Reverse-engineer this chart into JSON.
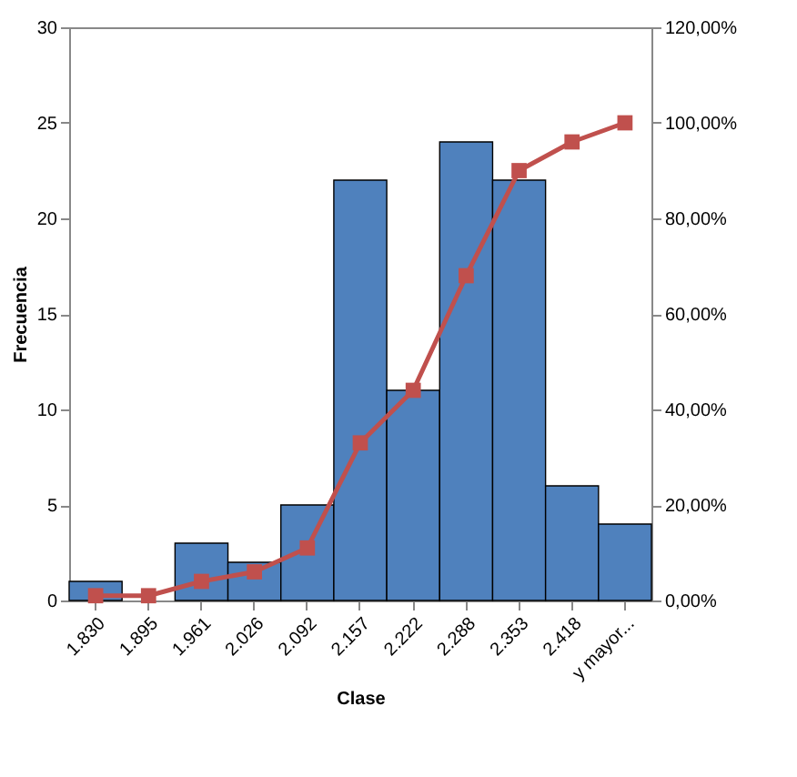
{
  "chart_data": {
    "type": "bar",
    "xlabel": "Clase",
    "ylabel": "Frecuencia",
    "categories": [
      "1.830",
      "1.895",
      "1.961",
      "2.026",
      "2.092",
      "2.157",
      "2.222",
      "2.288",
      "2.353",
      "2.418",
      "y mayor..."
    ],
    "series": [
      {
        "color": "#4f81bd",
        "values": [
          1,
          0,
          3,
          2,
          5,
          22,
          11,
          24,
          22,
          6,
          4
        ]
      },
      {
        "type": "line",
        "axis": "y2",
        "color": "#c0504d",
        "marker": "square",
        "line_style": "solid",
        "values": [
          1,
          1,
          4,
          6,
          11,
          33,
          44,
          68,
          90,
          96,
          100
        ]
      }
    ],
    "ylim": [
      0,
      30
    ],
    "yticks": [
      0,
      5,
      10,
      15,
      20,
      25,
      30
    ],
    "y2lim": [
      0,
      120
    ],
    "y2ticks": [
      {
        "value": 0,
        "label": "0,00%"
      },
      {
        "value": 20,
        "label": "20,00%"
      },
      {
        "value": 40,
        "label": "40,00%"
      },
      {
        "value": 60,
        "label": "60,00%"
      },
      {
        "value": 80,
        "label": "80,00%"
      },
      {
        "value": 100,
        "label": "100,00%"
      },
      {
        "value": 120,
        "label": "120,00%"
      }
    ],
    "grid": false
  }
}
